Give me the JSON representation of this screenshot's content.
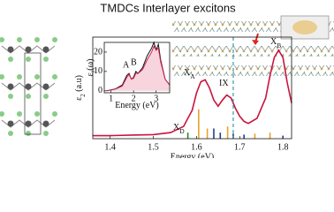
{
  "title": "TMDCs Interlayer excitons",
  "chart_data": [
    {
      "type": "line",
      "xlabel": "Energy (eV)",
      "ylabel": {
        "base": "ε",
        "sub": "2",
        "rest": " (a.u)"
      },
      "xlim": [
        1.36,
        1.82
      ],
      "ylim": [
        0,
        1
      ],
      "xticks": [
        1.4,
        1.5,
        1.6,
        1.7,
        1.8
      ],
      "series": [
        {
          "color": "#c8143c",
          "x": [
            1.36,
            1.4,
            1.45,
            1.5,
            1.54,
            1.57,
            1.59,
            1.6,
            1.61,
            1.62,
            1.63,
            1.64,
            1.65,
            1.66,
            1.67,
            1.68,
            1.69,
            1.7,
            1.71,
            1.72,
            1.74,
            1.76,
            1.77,
            1.78,
            1.79,
            1.8,
            1.81,
            1.82
          ],
          "values": [
            0.03,
            0.03,
            0.035,
            0.04,
            0.06,
            0.12,
            0.28,
            0.45,
            0.56,
            0.58,
            0.5,
            0.38,
            0.32,
            0.38,
            0.43,
            0.4,
            0.3,
            0.22,
            0.17,
            0.15,
            0.2,
            0.4,
            0.62,
            0.8,
            0.87,
            0.8,
            0.55,
            0.35
          ]
        }
      ],
      "sticks": {
        "x": [
          1.58,
          1.605,
          1.625,
          1.64,
          1.655,
          1.672,
          1.685,
          1.71,
          1.735,
          1.77,
          1.8
        ],
        "values": [
          0.06,
          0.29,
          0.1,
          0.1,
          0.06,
          0.12,
          0.05,
          0.04,
          0.05,
          0.06,
          0.03
        ],
        "colors": [
          "#2a8a2a",
          "#e8a030",
          "#e8a030",
          "#283c8c",
          "#283c8c",
          "#e8a030",
          "#283c8c",
          "#283c8c",
          "#e8a030",
          "#e8a030",
          "#283c8c"
        ]
      },
      "vline": 1.685,
      "annotations": [
        {
          "base": "X",
          "sub": "A"
        },
        {
          "base": "IX",
          "sub": ""
        },
        {
          "base": "X",
          "sub": "D"
        },
        {
          "base": "X",
          "sub": "B"
        }
      ]
    },
    {
      "type": "line",
      "xlabel": "Energy (eV)",
      "ylabel": {
        "base": "ε",
        "sub": "2",
        "rest": "(ω)"
      },
      "xlim": [
        0.7,
        3.6
      ],
      "ylim": [
        -1,
        25
      ],
      "xticks": [
        1,
        2,
        3
      ],
      "yticks": [
        0,
        10,
        20
      ],
      "series": [
        {
          "color": "#111111",
          "x": [
            0.8,
            1.0,
            1.2,
            1.5,
            1.7,
            1.8,
            1.9,
            2.0,
            2.1,
            2.2,
            2.4,
            2.6,
            2.8,
            2.9,
            3.0,
            3.1,
            3.2,
            3.4,
            3.6
          ],
          "values": [
            0,
            0.5,
            1,
            3,
            8,
            9,
            6,
            7,
            10,
            9,
            12,
            18,
            22,
            25,
            21,
            24,
            16,
            6,
            3
          ]
        },
        {
          "color": "#d02050",
          "x": [
            0.8,
            1.0,
            1.2,
            1.5,
            1.7,
            1.8,
            1.9,
            2.0,
            2.1,
            2.2,
            2.4,
            2.6,
            2.8,
            2.9,
            3.0,
            3.1,
            3.2,
            3.4,
            3.6
          ],
          "values": [
            0,
            0.4,
            0.9,
            2.5,
            7,
            8.5,
            6,
            6.5,
            9,
            9,
            11,
            16,
            20,
            23,
            21,
            22,
            15,
            6,
            3
          ]
        }
      ],
      "annotations": [
        "A",
        "B"
      ]
    }
  ]
}
